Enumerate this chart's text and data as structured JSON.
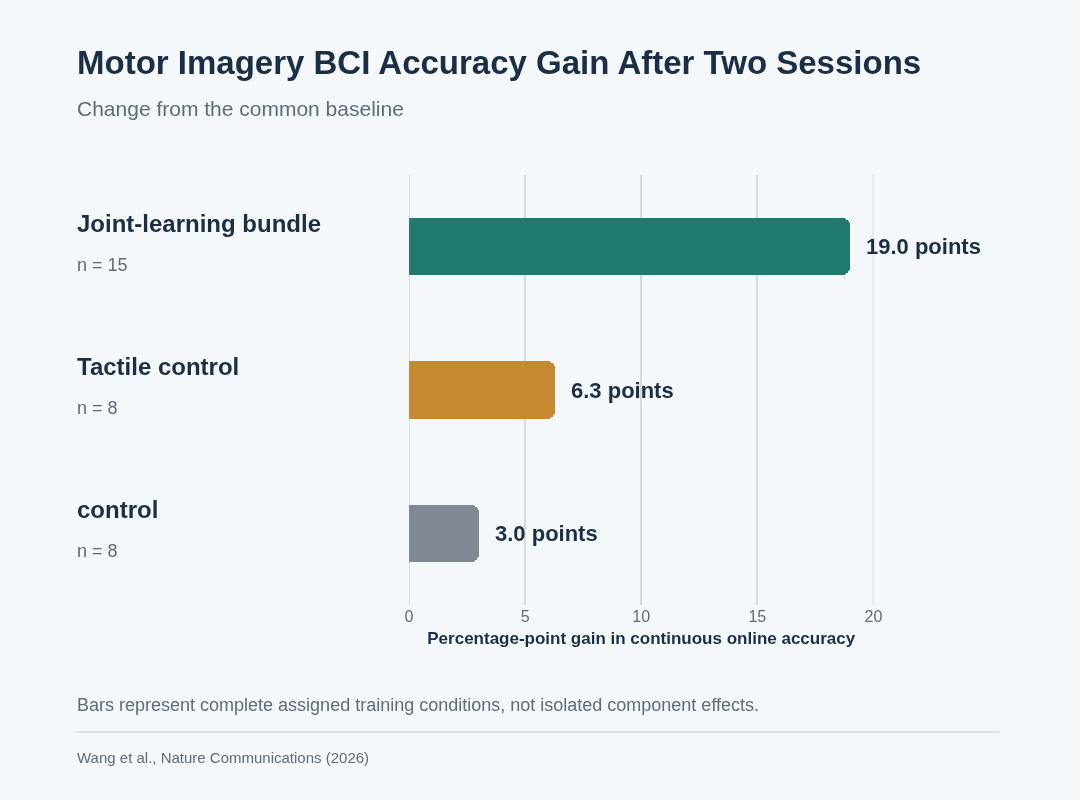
{
  "chart_data": {
    "type": "bar",
    "orientation": "horizontal",
    "title": "Motor Imagery BCI Accuracy Gain After Two Sessions",
    "subtitle": "Change from the common baseline",
    "xlabel": "Percentage-point gain in continuous online accuracy",
    "categories": [
      "Joint-learning bundle\nn = 15",
      "Tactile control\nn = 8",
      "control\nn = 8"
    ],
    "values": [
      19.0,
      6.3,
      3.0
    ],
    "colors": [
      "#217a6e",
      "#c58a2f",
      "#7f8893"
    ],
    "value_labels": [
      "19.0 points",
      "6.3 points",
      "3.0 points"
    ],
    "xlim": [
      0,
      20
    ],
    "xticks": [
      0,
      5,
      10,
      15,
      20
    ],
    "grid": "x",
    "legend": false,
    "annotations": [
      "Bars represent complete assigned training conditions, not isolated component effects.",
      "Wang et al., Nature Communications (2026)"
    ]
  }
}
